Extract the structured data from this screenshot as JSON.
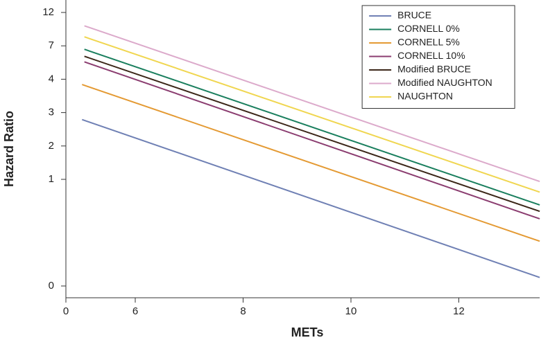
{
  "chart_data": {
    "type": "line",
    "xlabel": "METs",
    "ylabel": "Hazard Ratio",
    "xlim": [
      0,
      13.5
    ],
    "xticks": [
      0,
      6,
      8,
      10,
      12
    ],
    "ylim": [
      0,
      12
    ],
    "yticks": [
      0,
      1,
      2,
      3,
      4,
      7,
      12
    ],
    "legend": "upper right",
    "series": [
      {
        "name": "BRUCE",
        "color": "#6f80b4",
        "x": [
          1.4,
          13.5
        ],
        "values": [
          2.79,
          0.08
        ]
      },
      {
        "name": "CORNELL 0%",
        "color": "#1a7f5e",
        "x": [
          1.6,
          13.5
        ],
        "values": [
          6.69,
          0.76
        ]
      },
      {
        "name": "CORNELL 5%",
        "color": "#e49a33",
        "x": [
          1.4,
          13.5
        ],
        "values": [
          3.84,
          0.42
        ]
      },
      {
        "name": "CORNELL 10%",
        "color": "#8b3d70",
        "x": [
          1.6,
          13.5
        ],
        "values": [
          5.56,
          0.63
        ]
      },
      {
        "name": "Modified BRUCE",
        "color": "#3b2618",
        "x": [
          1.6,
          13.5
        ],
        "values": [
          6.06,
          0.7
        ]
      },
      {
        "name": "Modified NAUGHTON",
        "color": "#dcaacb",
        "x": [
          1.6,
          13.5
        ],
        "values": [
          10.0,
          0.98
        ]
      },
      {
        "name": "NAUGHTON",
        "color": "#f0d650",
        "x": [
          1.6,
          13.5
        ],
        "values": [
          8.35,
          0.88
        ]
      }
    ]
  }
}
